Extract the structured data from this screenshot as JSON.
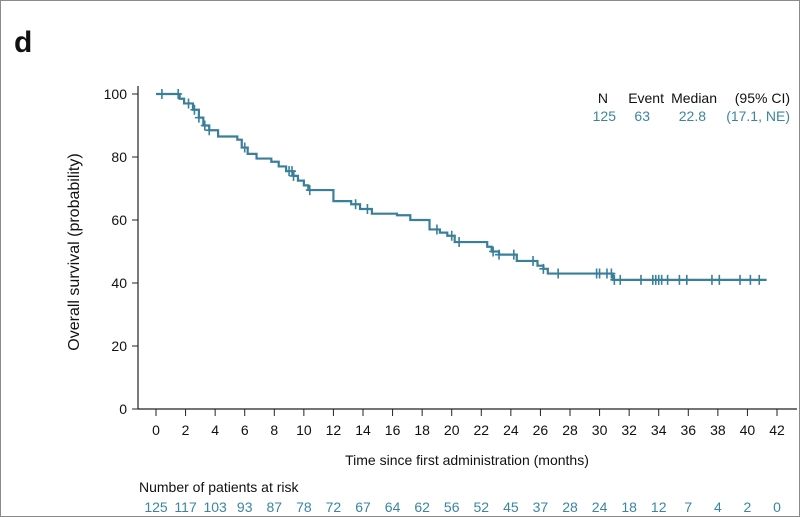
{
  "panel_label": "d",
  "colors": {
    "curve": "#3a7f9a",
    "text": "#111111",
    "accent_text": "#3a86a0"
  },
  "chart_data": {
    "type": "line",
    "subtype": "kaplan-meier",
    "xlabel": "Time since first administration (months)",
    "ylabel": "Overall survival (probability)",
    "xlim": [
      0,
      42
    ],
    "ylim": [
      0,
      100
    ],
    "xticks": [
      0,
      2,
      4,
      6,
      8,
      10,
      12,
      14,
      16,
      18,
      20,
      22,
      24,
      26,
      28,
      30,
      32,
      34,
      36,
      38,
      40,
      42
    ],
    "yticks": [
      0,
      20,
      40,
      60,
      80,
      100
    ],
    "grid": false,
    "steps": [
      [
        0,
        100
      ],
      [
        1.6,
        98.5
      ],
      [
        1.9,
        97
      ],
      [
        2.5,
        95
      ],
      [
        2.9,
        92.5
      ],
      [
        3.2,
        90
      ],
      [
        3.6,
        88.5
      ],
      [
        4.2,
        86.5
      ],
      [
        5.5,
        85.5
      ],
      [
        5.8,
        83
      ],
      [
        6.2,
        81
      ],
      [
        6.8,
        79.5
      ],
      [
        7.8,
        78.5
      ],
      [
        8.3,
        77
      ],
      [
        8.8,
        75.5
      ],
      [
        9.3,
        74
      ],
      [
        9.6,
        72.5
      ],
      [
        10.0,
        71
      ],
      [
        10.3,
        69.5
      ],
      [
        12.0,
        66
      ],
      [
        13.2,
        65
      ],
      [
        13.8,
        63.5
      ],
      [
        14.6,
        62
      ],
      [
        16.3,
        61.5
      ],
      [
        17.2,
        60
      ],
      [
        18.5,
        57
      ],
      [
        19.2,
        56
      ],
      [
        19.7,
        55
      ],
      [
        20.2,
        53
      ],
      [
        22.4,
        51.5
      ],
      [
        22.7,
        50
      ],
      [
        23.2,
        49
      ],
      [
        24.4,
        47
      ],
      [
        25.8,
        45.5
      ],
      [
        26.2,
        44.5
      ],
      [
        26.5,
        43
      ],
      [
        30.9,
        41
      ]
    ],
    "end_time": 41.3,
    "censored": [
      0.4,
      1.5,
      2.2,
      2.6,
      2.9,
      3.3,
      3.6,
      6.0,
      9.0,
      9.2,
      9.3,
      10.4,
      13.5,
      14.3,
      19.0,
      20.0,
      20.5,
      22.8,
      23.2,
      24.2,
      25.5,
      26.2,
      27.2,
      29.8,
      30.0,
      30.5,
      30.8,
      31.0,
      31.4,
      32.8,
      33.6,
      33.8,
      34.0,
      34.2,
      34.6,
      35.4,
      35.9,
      37.6,
      38.1,
      39.5,
      40.2,
      40.8
    ],
    "legend": {
      "placement": "top-right",
      "headers": [
        "N",
        "Event",
        "Median",
        "(95% CI)"
      ],
      "values": [
        "125",
        "63",
        "22.8",
        "(17.1, NE)"
      ]
    },
    "risk_table": {
      "title": "Number of patients at risk",
      "values": [
        125,
        117,
        103,
        93,
        87,
        78,
        72,
        67,
        64,
        62,
        56,
        52,
        45,
        37,
        28,
        24,
        18,
        12,
        7,
        4,
        2,
        0
      ]
    }
  }
}
